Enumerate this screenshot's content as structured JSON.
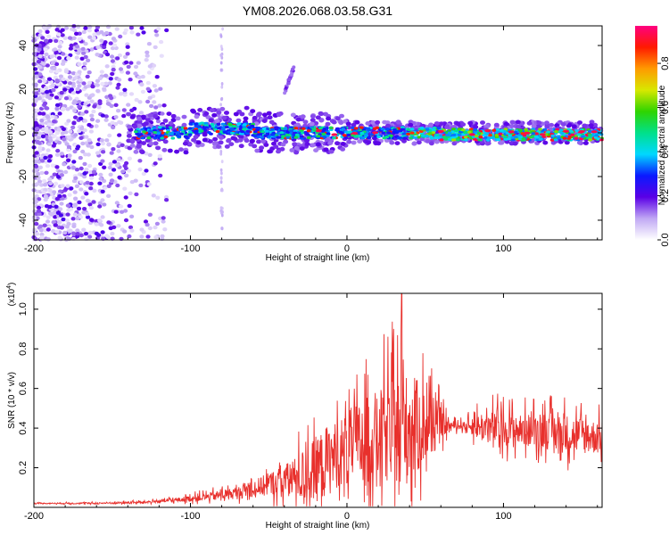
{
  "title": "YM08.2026.068.03.58.G31",
  "colors": {
    "snr_line": "#e8302c",
    "frame": "#000000",
    "colormap": [
      "#ffffff",
      "#c0a8f4",
      "#5a00e6",
      "#0a1aff",
      "#00d8ff",
      "#00e08a",
      "#2fd400",
      "#d8e800",
      "#ff9a00",
      "#ff1a00",
      "#ff0080"
    ]
  },
  "chart_data": [
    {
      "type": "heatmap",
      "name": "spectrogram",
      "xlabel": "Height of straight line (km)",
      "ylabel": "Frequency (Hz)",
      "xlim": [
        -200,
        163
      ],
      "ylim": [
        -49,
        49
      ],
      "xticks": [
        -200,
        -100,
        0,
        100
      ],
      "yticks": [
        -40,
        -20,
        0,
        20,
        40
      ],
      "xtick_labels": [
        "-200",
        "-100",
        "0",
        "100"
      ],
      "ytick_labels": [
        "-40",
        "-20",
        "0",
        "20",
        "40"
      ],
      "colorbar": {
        "label": "Normalized spectral amplitude",
        "range": [
          0,
          0.97
        ],
        "ticks": [
          0.0,
          0.2,
          0.4,
          0.6,
          0.8
        ],
        "tick_labels": [
          "0.0",
          "0.2",
          "0.4",
          "0.6",
          "0.8"
        ]
      },
      "features": {
        "noise_region_x": [
          -200,
          -125
        ],
        "main_band_x": [
          -140,
          163
        ],
        "main_band_freq_hz": 0,
        "drift_segment": {
          "x": [
            -40,
            -34
          ],
          "freq_hz": [
            18,
            30
          ]
        },
        "artifact_column_x": -80
      }
    },
    {
      "type": "line",
      "name": "snr",
      "xlabel": "Height of straight line (km)",
      "ylabel": "SNR (10 * v/v)",
      "multiplier": "(x10",
      "multiplier_exp": "4",
      "multiplier_close": ")",
      "xlim": [
        -200,
        163
      ],
      "ylim": [
        0,
        1.08
      ],
      "xticks": [
        -200,
        -100,
        0,
        100
      ],
      "yticks": [
        0.2,
        0.4,
        0.6,
        0.8,
        1.0
      ],
      "xtick_labels": [
        "-200",
        "-100",
        "0",
        "100"
      ],
      "ytick_labels": [
        "0.2",
        "0.4",
        "0.6",
        "0.8",
        "1.0"
      ],
      "envelope": {
        "x": [
          -200,
          -160,
          -130,
          -110,
          -90,
          -70,
          -55,
          -45,
          -35,
          -25,
          -15,
          -5,
          5,
          15,
          25,
          35,
          45,
          55,
          65,
          75,
          85,
          95,
          110,
          125,
          140,
          155,
          163
        ],
        "base": [
          0.02,
          0.02,
          0.025,
          0.035,
          0.05,
          0.07,
          0.1,
          0.12,
          0.13,
          0.15,
          0.2,
          0.26,
          0.3,
          0.32,
          0.34,
          0.36,
          0.38,
          0.4,
          0.41,
          0.41,
          0.4,
          0.39,
          0.38,
          0.38,
          0.36,
          0.35,
          0.34
        ],
        "amp": [
          0.005,
          0.008,
          0.012,
          0.02,
          0.04,
          0.06,
          0.1,
          0.14,
          0.2,
          0.3,
          0.36,
          0.34,
          0.4,
          0.45,
          0.5,
          0.6,
          0.48,
          0.3,
          0.05,
          0.04,
          0.15,
          0.18,
          0.16,
          0.18,
          0.2,
          0.18,
          0.16
        ]
      },
      "peak": {
        "x": 35,
        "y": 1.08
      }
    }
  ]
}
